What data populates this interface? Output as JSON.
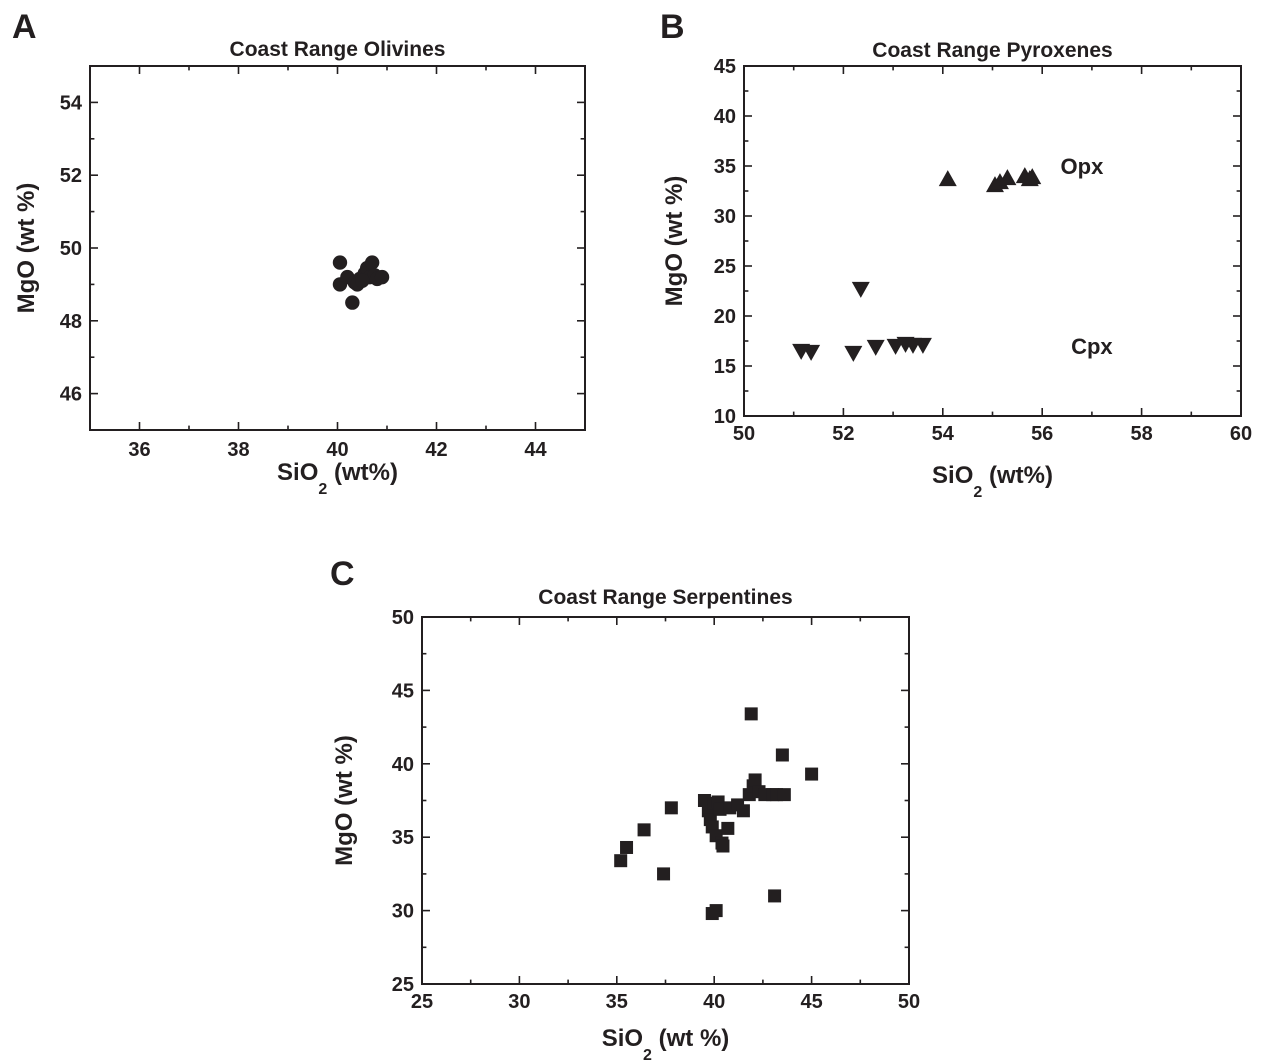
{
  "panels": [
    {
      "letter": "A",
      "title": "Coast Range Olivines",
      "xlabel_main": "SiO",
      "xlabel_sub": "2",
      "xlabel_tail": " (wt%)",
      "ylabel": "MgO (wt %)",
      "annotations": []
    },
    {
      "letter": "B",
      "title": "Coast Range Pyroxenes",
      "xlabel_main": "SiO",
      "xlabel_sub": "2",
      "xlabel_tail": " (wt%)",
      "ylabel": "MgO (wt %)",
      "annotations": [
        {
          "text": "Opx",
          "x": 56.8,
          "y": 35
        },
        {
          "text": "Cpx",
          "x": 57.0,
          "y": 17
        }
      ]
    },
    {
      "letter": "C",
      "title": "Coast Range Serpentines",
      "xlabel_main": "SiO",
      "xlabel_sub": "2",
      "xlabel_tail": " (wt %)",
      "ylabel": "MgO (wt %)",
      "annotations": []
    }
  ],
  "chart_data": [
    {
      "type": "scatter",
      "title": "Coast Range Olivines",
      "xlabel": "SiO2 (wt%)",
      "ylabel": "MgO (wt %)",
      "xlim": [
        35,
        45
      ],
      "ylim": [
        45,
        55
      ],
      "xticks": [
        36,
        38,
        40,
        42,
        44
      ],
      "yticks": [
        46,
        48,
        50,
        52,
        54
      ],
      "grid": false,
      "series": [
        {
          "marker": "circle",
          "points": [
            [
              40.05,
              49.6
            ],
            [
              40.05,
              49.0
            ],
            [
              40.2,
              49.2
            ],
            [
              40.3,
              48.5
            ],
            [
              40.35,
              49.05
            ],
            [
              40.45,
              49.15
            ],
            [
              40.4,
              49.0
            ],
            [
              40.55,
              49.3
            ],
            [
              40.6,
              49.45
            ],
            [
              40.7,
              49.6
            ],
            [
              40.65,
              49.2
            ],
            [
              40.75,
              49.25
            ],
            [
              40.8,
              49.15
            ],
            [
              40.9,
              49.2
            ],
            [
              40.5,
              49.1
            ]
          ]
        }
      ]
    },
    {
      "type": "scatter",
      "title": "Coast Range Pyroxenes",
      "xlabel": "SiO2 (wt%)",
      "ylabel": "MgO (wt %)",
      "xlim": [
        50,
        60
      ],
      "ylim": [
        10,
        45
      ],
      "xticks": [
        50,
        52,
        54,
        56,
        58,
        60
      ],
      "yticks": [
        10,
        15,
        20,
        25,
        30,
        35,
        40,
        45
      ],
      "grid": false,
      "series": [
        {
          "name": "Opx",
          "marker": "triangle-up",
          "points": [
            [
              54.1,
              33.6
            ],
            [
              55.05,
              33.0
            ],
            [
              55.15,
              33.3
            ],
            [
              55.3,
              33.7
            ],
            [
              55.65,
              33.9
            ],
            [
              55.75,
              33.6
            ],
            [
              55.8,
              33.8
            ]
          ]
        },
        {
          "name": "Cpx",
          "marker": "triangle-down",
          "points": [
            [
              51.15,
              16.6
            ],
            [
              51.35,
              16.5
            ],
            [
              52.2,
              16.4
            ],
            [
              52.35,
              22.8
            ],
            [
              52.65,
              17.0
            ],
            [
              53.05,
              17.1
            ],
            [
              53.25,
              17.3
            ],
            [
              53.4,
              17.2
            ],
            [
              53.6,
              17.2
            ]
          ]
        }
      ]
    },
    {
      "type": "scatter",
      "title": "Coast Range Serpentines",
      "xlabel": "SiO2 (wt %)",
      "ylabel": "MgO (wt %)",
      "xlim": [
        25,
        50
      ],
      "ylim": [
        25,
        50
      ],
      "xticks": [
        25,
        30,
        35,
        40,
        45,
        50
      ],
      "yticks": [
        25,
        30,
        35,
        40,
        45,
        50
      ],
      "grid": false,
      "series": [
        {
          "marker": "square",
          "points": [
            [
              35.2,
              33.4
            ],
            [
              35.5,
              34.3
            ],
            [
              36.4,
              35.5
            ],
            [
              37.4,
              32.5
            ],
            [
              37.8,
              37.0
            ],
            [
              39.5,
              37.5
            ],
            [
              39.7,
              36.8
            ],
            [
              39.8,
              36.2
            ],
            [
              39.9,
              35.7
            ],
            [
              40.0,
              37.3
            ],
            [
              40.1,
              35.1
            ],
            [
              40.2,
              37.4
            ],
            [
              40.3,
              36.9
            ],
            [
              40.4,
              34.6
            ],
            [
              40.45,
              34.4
            ],
            [
              40.7,
              35.6
            ],
            [
              40.8,
              37.0
            ],
            [
              41.2,
              37.2
            ],
            [
              41.5,
              36.8
            ],
            [
              41.8,
              37.9
            ],
            [
              42.0,
              38.5
            ],
            [
              42.1,
              38.9
            ],
            [
              42.3,
              38.1
            ],
            [
              42.6,
              37.9
            ],
            [
              43.0,
              37.9
            ],
            [
              43.2,
              37.9
            ],
            [
              43.6,
              37.9
            ],
            [
              43.5,
              40.6
            ],
            [
              41.9,
              43.4
            ],
            [
              45.0,
              39.3
            ],
            [
              43.1,
              31.0
            ],
            [
              39.9,
              29.8
            ],
            [
              40.1,
              30.0
            ]
          ]
        }
      ]
    }
  ]
}
